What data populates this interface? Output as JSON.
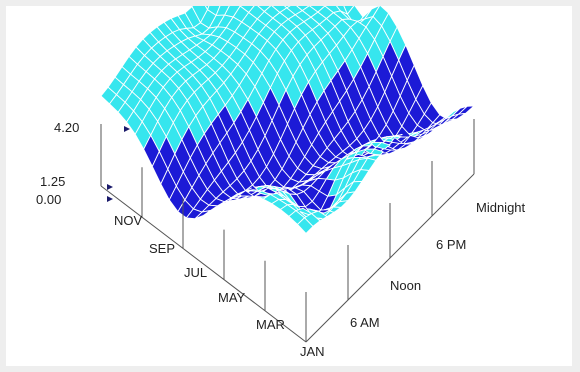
{
  "chart_data": {
    "type": "surface",
    "title": "",
    "x_axis": {
      "label": "",
      "ticks": [
        "JAN",
        "MAR",
        "MAY",
        "JUL",
        "SEP",
        "NOV"
      ]
    },
    "y_axis": {
      "label": "",
      "ticks": [
        "6 AM",
        "Noon",
        "6 PM",
        "Midnight"
      ]
    },
    "z_axis": {
      "label": "",
      "ticks": [
        "0.00",
        "1.25",
        "4.20"
      ],
      "range": [
        0.0,
        4.2
      ]
    },
    "contour_threshold": 1.25,
    "colors": {
      "low": "#1c1ad6",
      "high": "#36e6ee",
      "mesh": "#ffffff",
      "axis": "#555555",
      "label_dark": "#1a1a6a",
      "label_light": "#3ab8cc"
    },
    "grid": true
  }
}
